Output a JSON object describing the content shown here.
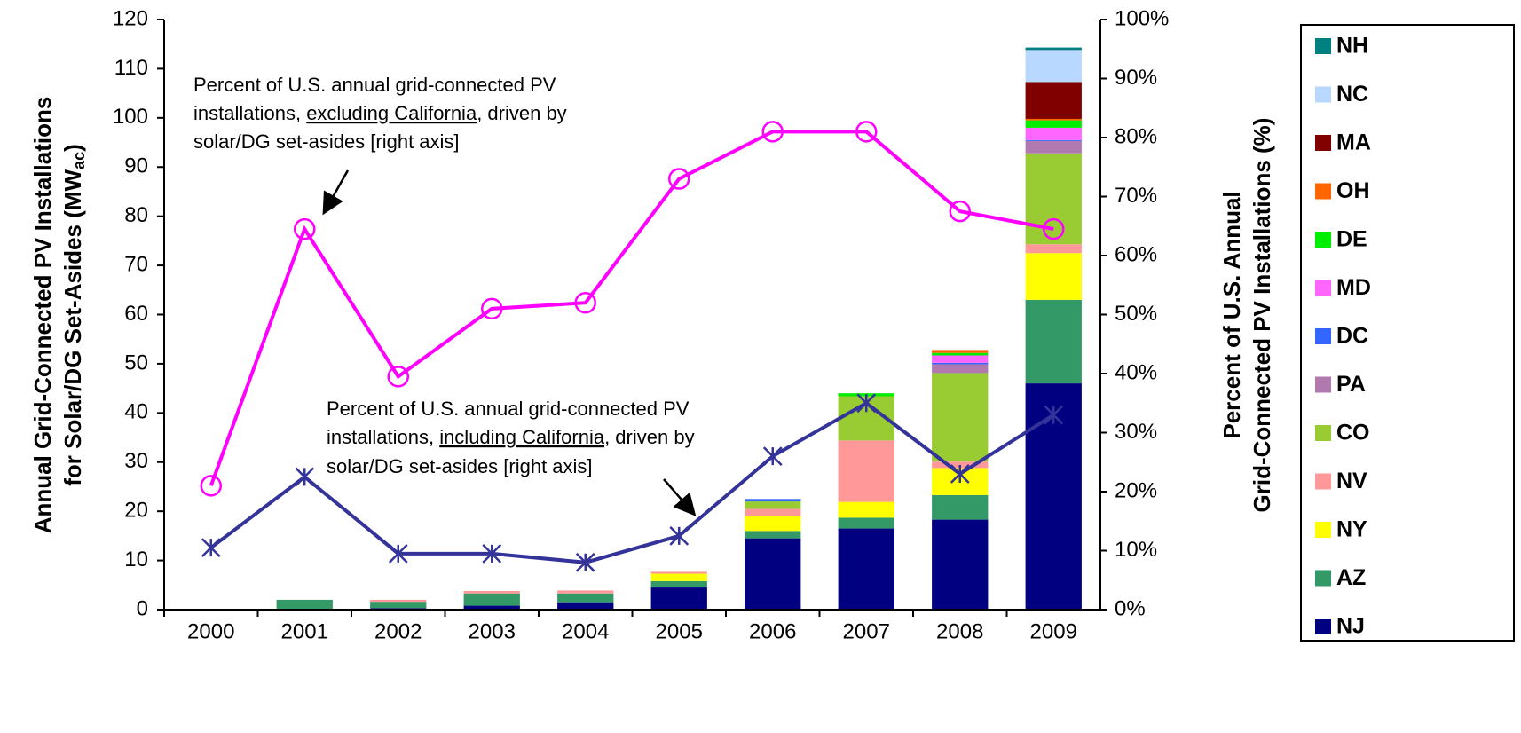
{
  "chart_data": {
    "type": "bar",
    "stacked": true,
    "categories": [
      "2000",
      "2001",
      "2002",
      "2003",
      "2004",
      "2005",
      "2006",
      "2007",
      "2008",
      "2009"
    ],
    "series": [
      {
        "name": "NJ",
        "color": "#000080",
        "values": [
          0,
          0,
          0.3,
          0.8,
          1.5,
          4.5,
          14.5,
          16.5,
          18.3,
          46
        ]
      },
      {
        "name": "AZ",
        "color": "#339966",
        "values": [
          0,
          2,
          1.3,
          2.5,
          1.8,
          1.3,
          1.5,
          2.2,
          5,
          17
        ]
      },
      {
        "name": "NY",
        "color": "#ffff00",
        "values": [
          0,
          0,
          0,
          0,
          0,
          1.5,
          3,
          3.2,
          5.5,
          9.5
        ]
      },
      {
        "name": "NV",
        "color": "#ff9999",
        "values": [
          0,
          0,
          0.4,
          0.5,
          0.6,
          0.4,
          1.5,
          12.5,
          1.3,
          1.8
        ]
      },
      {
        "name": "CO",
        "color": "#99cc33",
        "values": [
          0,
          0,
          0,
          0,
          0,
          0,
          1.5,
          9,
          18,
          18.5
        ]
      },
      {
        "name": "PA",
        "color": "#b07ab0",
        "values": [
          0,
          0,
          0,
          0,
          0,
          0,
          0,
          0,
          1.8,
          2.5
        ]
      },
      {
        "name": "DC",
        "color": "#3366ff",
        "values": [
          0,
          0,
          0,
          0,
          0,
          0,
          0.5,
          0,
          0.3,
          0.2
        ]
      },
      {
        "name": "MD",
        "color": "#ff66ff",
        "values": [
          0,
          0,
          0,
          0,
          0,
          0,
          0,
          0,
          1.5,
          2.5
        ]
      },
      {
        "name": "DE",
        "color": "#00ee00",
        "values": [
          0,
          0,
          0,
          0,
          0,
          0,
          0,
          0.6,
          0.5,
          1.5
        ]
      },
      {
        "name": "OH",
        "color": "#ff6600",
        "values": [
          0,
          0,
          0,
          0,
          0,
          0,
          0,
          0,
          0.6,
          0.3
        ]
      },
      {
        "name": "MA",
        "color": "#800000",
        "values": [
          0,
          0,
          0,
          0,
          0,
          0,
          0,
          0,
          0,
          7.5
        ]
      },
      {
        "name": "NC",
        "color": "#b8d8ff",
        "values": [
          0,
          0,
          0,
          0,
          0,
          0,
          0,
          0,
          0,
          6.5
        ]
      },
      {
        "name": "NH",
        "color": "#008080",
        "values": [
          0,
          0,
          0,
          0,
          0,
          0,
          0,
          0,
          0,
          0.5
        ]
      }
    ],
    "lines": [
      {
        "color": "#ff00ff",
        "marker": "circle",
        "axis": "y2",
        "values": [
          21,
          64.5,
          39.5,
          51,
          52,
          73,
          81,
          81,
          67.5,
          64.5
        ]
      },
      {
        "color": "#333399",
        "marker": "x",
        "axis": "y2",
        "values": [
          10.5,
          22.5,
          9.5,
          9.5,
          8,
          12.5,
          26,
          35,
          23,
          33
        ]
      }
    ],
    "ylim": [
      0,
      120
    ],
    "yticks": [
      0,
      10,
      20,
      30,
      40,
      50,
      60,
      70,
      80,
      90,
      100,
      110,
      120
    ],
    "y2lim": [
      0,
      100
    ],
    "y2ticks": [
      {
        "value": 0,
        "label": "0%"
      },
      {
        "value": 10,
        "label": "10%"
      },
      {
        "value": 20,
        "label": "20%"
      },
      {
        "value": 30,
        "label": "30%"
      },
      {
        "value": 40,
        "label": "40%"
      },
      {
        "value": 50,
        "label": "50%"
      },
      {
        "value": 60,
        "label": "60%"
      },
      {
        "value": 70,
        "label": "70%"
      },
      {
        "value": 80,
        "label": "80%"
      },
      {
        "value": 90,
        "label": "90%"
      },
      {
        "value": 100,
        "label": "100%"
      }
    ],
    "ylabel": {
      "line1": "Annual Grid-Connected  PV Installations",
      "line2": "for Solar/DG Set-Asides  (MW",
      "line2_sub": "ac",
      "line2_end": ")"
    },
    "y2label": {
      "line1": "Percent of U.S. Annual",
      "line2": "Grid-Connected  PV Installations (%)"
    },
    "annotations": [
      {
        "line1": "Percent of U.S. annual grid-connected PV",
        "line2a": "installations, ",
        "line2b": "excluding California",
        "line2c": ", driven by",
        "line3": "solar/DG set-asides [right axis]"
      },
      {
        "line1": "Percent of U.S. annual grid-connected PV",
        "line2a": "installations, ",
        "line2b": "including California",
        "line2c": ", driven by",
        "line3": "solar/DG set-asides [right axis]"
      }
    ],
    "legend": "right"
  }
}
